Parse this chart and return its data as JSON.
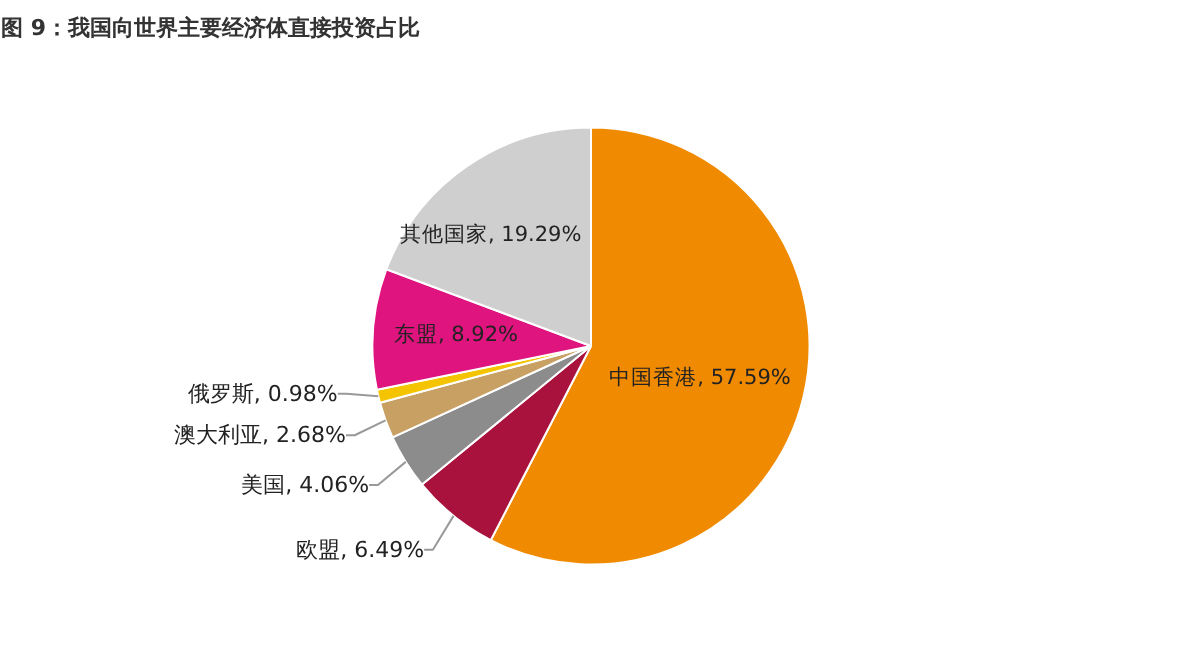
{
  "chart_data": {
    "type": "pie",
    "title": "图 9：我国向世界主要经济体直接投资占比",
    "categories": [
      "中国香港",
      "欧盟",
      "美国",
      "澳大利亚",
      "俄罗斯",
      "东盟",
      "其他国家"
    ],
    "values": [
      57.59,
      6.49,
      4.06,
      2.68,
      0.98,
      8.92,
      19.29
    ],
    "value_labels": [
      "57.59%",
      "6.49%",
      "4.06%",
      "2.68%",
      "0.98%",
      "8.92%",
      "19.29%"
    ],
    "colors": [
      "#f08a00",
      "#a8123c",
      "#8c8c8c",
      "#c8a064",
      "#f5c400",
      "#e0147f",
      "#cfcfcf"
    ]
  }
}
